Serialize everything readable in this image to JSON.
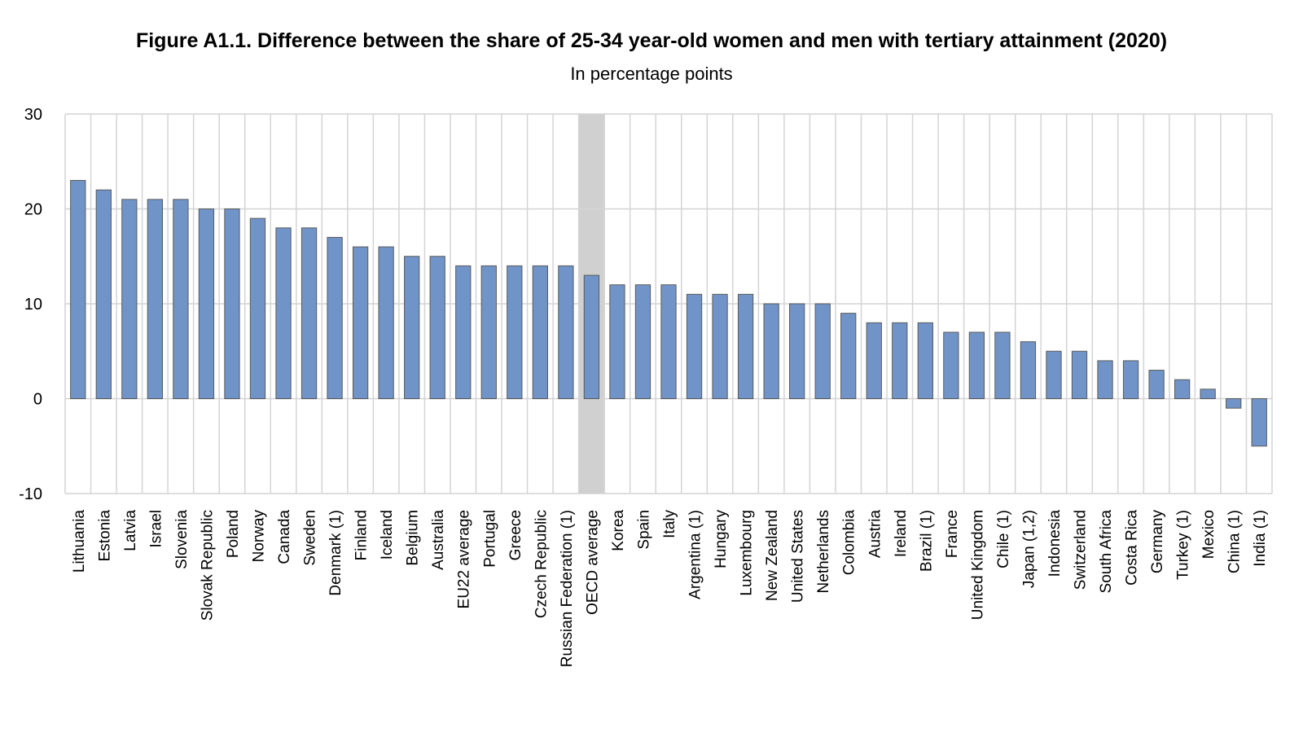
{
  "chart_data": {
    "type": "bar",
    "title": "Figure A1.1. Difference between the share of 25-34 year-old women and men with tertiary attainment (2020)",
    "subtitle": "In percentage points",
    "xlabel": "",
    "ylabel": "",
    "ylim": [
      -10,
      30
    ],
    "yticks": [
      -10,
      0,
      10,
      20,
      30
    ],
    "grid": true,
    "highlighted_category": "OECD average",
    "colors": {
      "bar": "#7094c8",
      "bar_stroke": "#5a5a5a",
      "highlight": "#d0d0d0",
      "grid": "#d4d4d4"
    },
    "categories": [
      "Lithuania",
      "Estonia",
      "Latvia",
      "Israel",
      "Slovenia",
      "Slovak Republic",
      "Poland",
      "Norway",
      "Canada",
      "Sweden",
      "Denmark (1)",
      "Finland",
      "Iceland",
      "Belgium",
      "Australia",
      "EU22 average",
      "Portugal",
      "Greece",
      "Czech Republic",
      "Russian Federation (1)",
      "OECD average",
      "Korea",
      "Spain",
      "Italy",
      "Argentina (1)",
      "Hungary",
      "Luxembourg",
      "New Zealand",
      "United States",
      "Netherlands",
      "Colombia",
      "Austria",
      "Ireland",
      "Brazil (1)",
      "France",
      "United Kingdom",
      "Chile (1)",
      "Japan (1,2)",
      "Indonesia",
      "Switzerland",
      "South Africa",
      "Costa Rica",
      "Germany",
      "Turkey (1)",
      "Mexico",
      "China (1)",
      "India (1)"
    ],
    "values": [
      23,
      22,
      21,
      21,
      21,
      20,
      20,
      19,
      18,
      18,
      17,
      16,
      16,
      15,
      15,
      14,
      14,
      14,
      14,
      14,
      13,
      12,
      12,
      12,
      11,
      11,
      11,
      10,
      10,
      10,
      9,
      8,
      8,
      8,
      7,
      7,
      7,
      6,
      5,
      5,
      4,
      4,
      3,
      2,
      1,
      -1,
      -5
    ]
  }
}
